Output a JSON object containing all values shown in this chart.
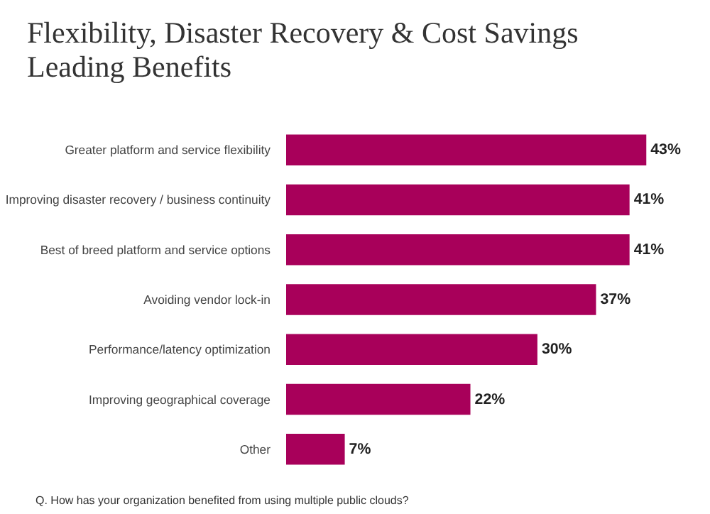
{
  "chart_data": {
    "type": "bar",
    "orientation": "horizontal",
    "title": "Flexibility, Disaster Recovery & Cost Savings\nLeading Benefits",
    "categories": [
      "Greater platform and service flexibility",
      "Improving disaster recovery / business continuity",
      "Best of breed platform and service options",
      "Avoiding vendor lock-in",
      "Performance/latency optimization",
      "Improving geographical coverage",
      "Other"
    ],
    "values": [
      43,
      41,
      41,
      37,
      30,
      22,
      7
    ],
    "value_labels": [
      "43%",
      "41%",
      "41%",
      "37%",
      "30%",
      "22%",
      "7%"
    ],
    "color": "#a8005a",
    "tick_labels": "y",
    "grid": false,
    "annotations": [
      "Q. How has your organization benefited from using multiple public clouds?"
    ]
  }
}
